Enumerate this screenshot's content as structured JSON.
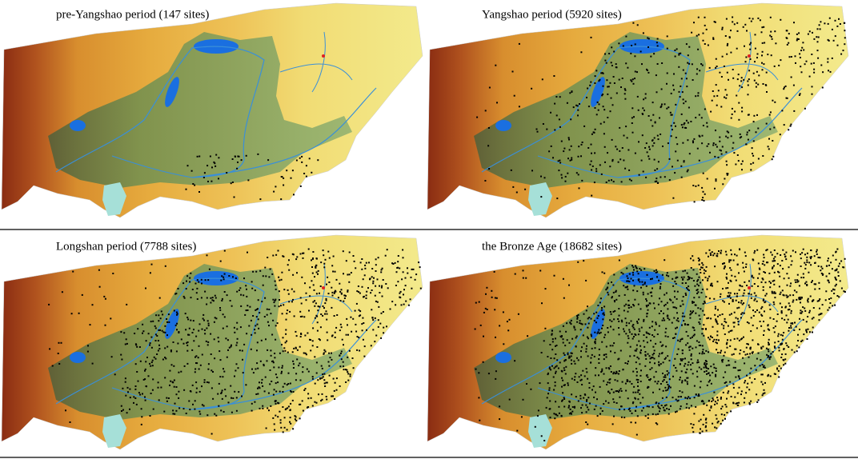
{
  "panels": [
    {
      "title": "pre-Yangshao period (147 sites)"
    },
    {
      "title": "Yangshao period (5920 sites)"
    },
    {
      "title": "Longshan period (7788 sites)"
    },
    {
      "title": "the Bronze Age (18682 sites)"
    }
  ]
}
